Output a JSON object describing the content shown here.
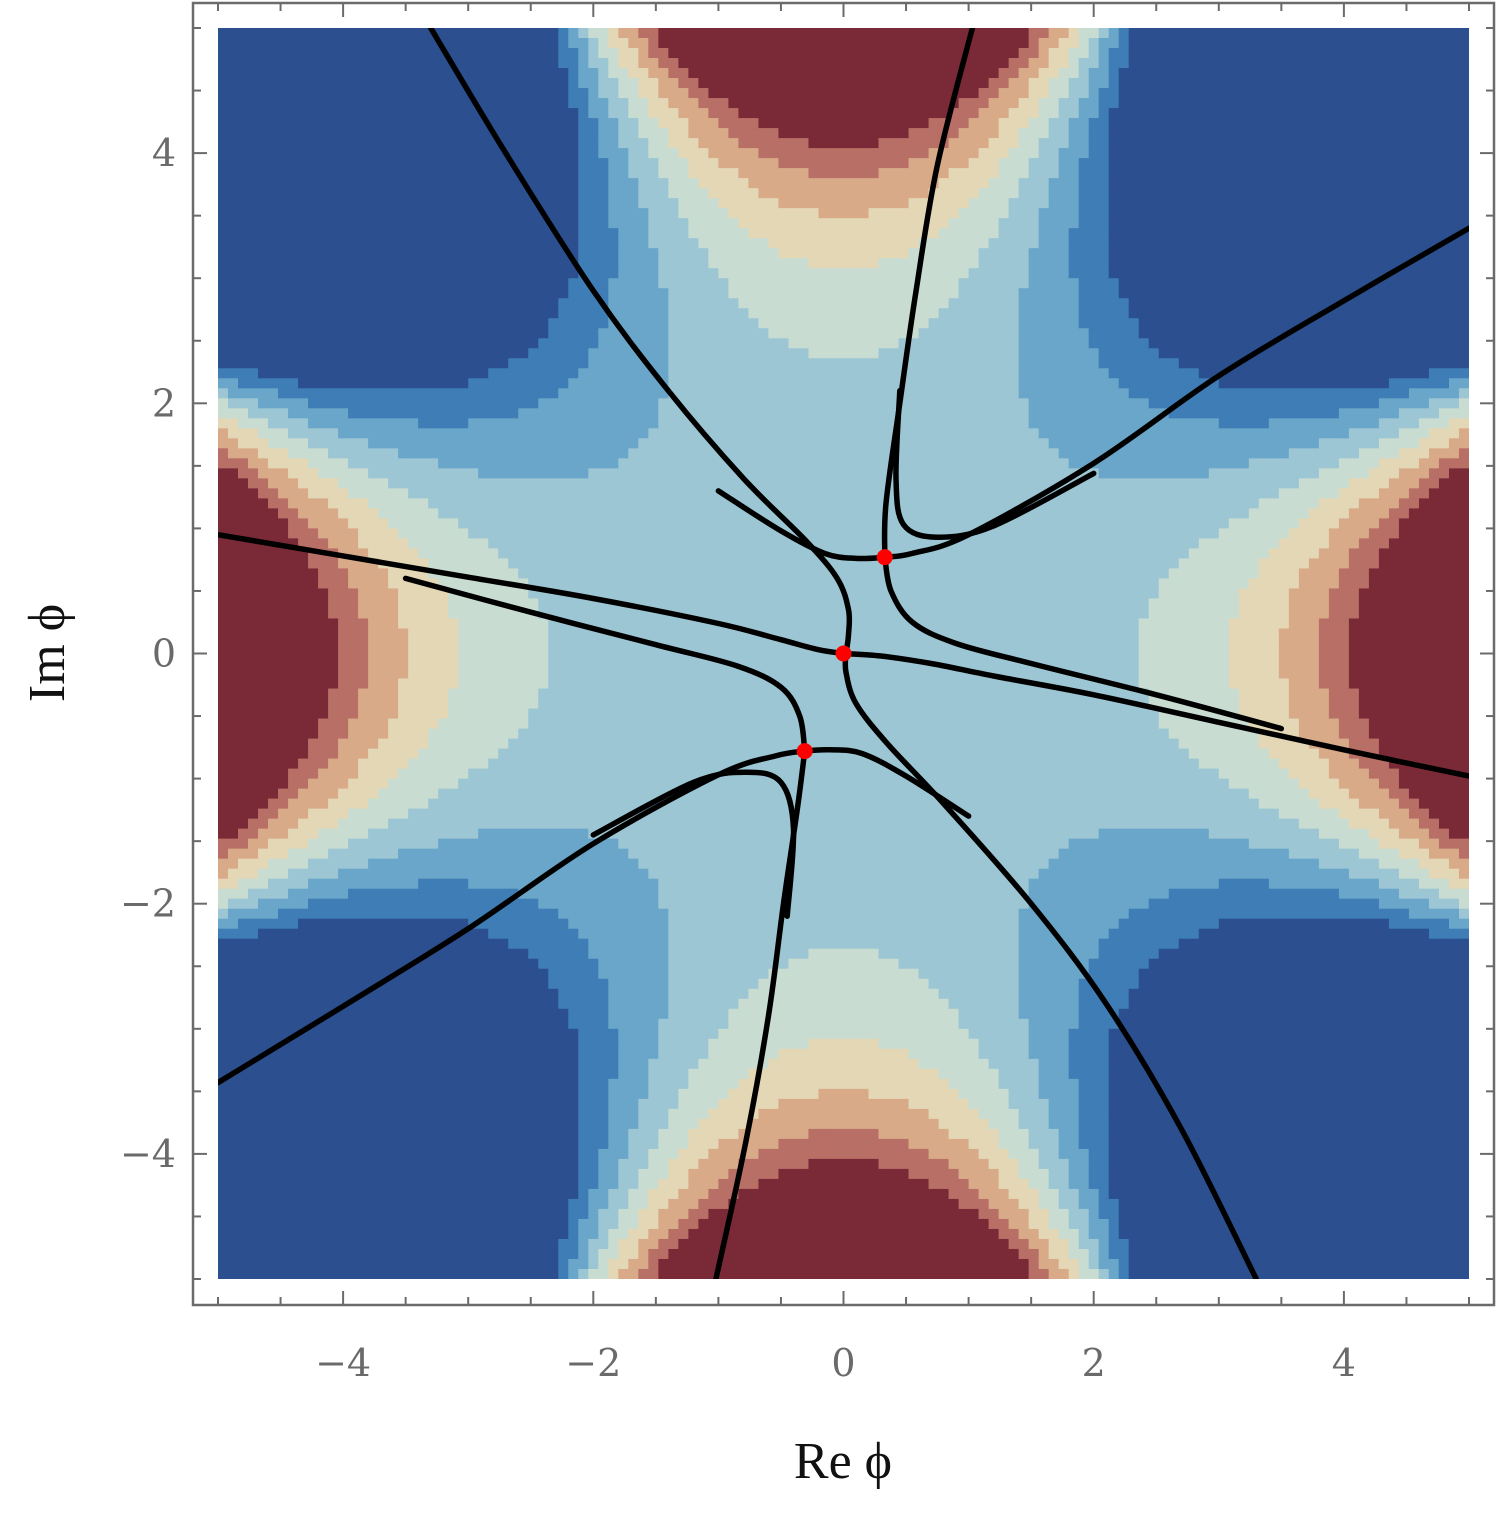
{
  "chart_data": {
    "type": "contour",
    "xlabel": "Re ϕ",
    "ylabel": "Im ϕ",
    "xlim": [
      -5,
      5
    ],
    "ylim": [
      -5,
      5
    ],
    "x_ticks": [
      -4,
      -2,
      0,
      2,
      4
    ],
    "x_tick_labels": [
      "−4",
      "−2",
      "0",
      "2",
      "4"
    ],
    "y_ticks": [
      -4,
      -2,
      0,
      2,
      4
    ],
    "y_tick_labels": [
      "−4",
      "−2",
      "0",
      "2",
      "4"
    ],
    "grid": false,
    "legend": "none",
    "colormap": [
      "#2c4f8f",
      "#3e7db5",
      "#6aa6c9",
      "#9cc6d3",
      "#c9dcd2",
      "#e3d7b5",
      "#d8aa88",
      "#b86f66",
      "#7a2a37"
    ],
    "saddle_points": [
      {
        "x": 0.0,
        "y": 0.0
      },
      {
        "x": 0.33,
        "y": 0.77
      },
      {
        "x": -0.31,
        "y": -0.78
      }
    ],
    "saddle_color": "#ff0000",
    "flow_line_color": "#000000",
    "flow_lines": [
      {
        "points": [
          [
            -5.0,
            0.95
          ],
          [
            -4.0,
            0.78
          ],
          [
            -3.0,
            0.61
          ],
          [
            -2.0,
            0.44
          ],
          [
            -1.0,
            0.24
          ],
          [
            -0.5,
            0.11
          ],
          [
            -0.2,
            0.03
          ],
          [
            0.0,
            0.0
          ]
        ]
      },
      {
        "points": [
          [
            0.0,
            0.0
          ],
          [
            0.3,
            -0.02
          ],
          [
            0.7,
            -0.08
          ],
          [
            1.2,
            -0.18
          ],
          [
            2.0,
            -0.33
          ],
          [
            3.0,
            -0.55
          ],
          [
            4.0,
            -0.77
          ],
          [
            5.0,
            -0.98
          ]
        ]
      },
      {
        "points": [
          [
            0.02,
            0.0
          ],
          [
            0.04,
            0.15
          ],
          [
            0.04,
            0.35
          ],
          [
            -0.05,
            0.6
          ],
          [
            -0.3,
            0.9
          ],
          [
            -0.8,
            1.4
          ],
          [
            -1.4,
            2.1
          ],
          [
            -2.0,
            2.9
          ],
          [
            -2.7,
            4.0
          ],
          [
            -3.3,
            5.0
          ]
        ]
      },
      {
        "points": [
          [
            0.02,
            0.0
          ],
          [
            0.02,
            -0.15
          ],
          [
            0.1,
            -0.4
          ],
          [
            0.35,
            -0.72
          ],
          [
            0.8,
            -1.2
          ],
          [
            1.5,
            -2.0
          ],
          [
            2.1,
            -2.8
          ],
          [
            2.7,
            -3.8
          ],
          [
            3.3,
            -5.0
          ]
        ]
      },
      {
        "points": [
          [
            -1.0,
            1.3
          ],
          [
            -0.5,
            0.98
          ],
          [
            -0.15,
            0.8
          ],
          [
            0.1,
            0.76
          ],
          [
            0.33,
            0.77
          ],
          [
            0.55,
            0.8
          ],
          [
            1.0,
            0.95
          ],
          [
            2.0,
            1.52
          ],
          [
            3.0,
            2.22
          ],
          [
            4.0,
            2.82
          ],
          [
            5.0,
            3.4
          ]
        ]
      },
      {
        "points": [
          [
            0.33,
            0.77
          ],
          [
            0.34,
            1.2
          ],
          [
            0.45,
            2.0
          ],
          [
            0.58,
            2.9
          ],
          [
            0.75,
            3.9
          ],
          [
            1.03,
            5.0
          ]
        ]
      },
      {
        "points": [
          [
            0.33,
            0.77
          ],
          [
            0.38,
            0.5
          ],
          [
            0.55,
            0.25
          ],
          [
            0.9,
            0.08
          ],
          [
            1.5,
            -0.08
          ],
          [
            2.5,
            -0.33
          ],
          [
            3.5,
            -0.6
          ]
        ]
      },
      {
        "points": [
          [
            0.45,
            2.1
          ],
          [
            0.42,
            1.4
          ],
          [
            0.48,
            1.03
          ],
          [
            0.75,
            0.93
          ],
          [
            1.2,
            1.02
          ],
          [
            2.0,
            1.44
          ]
        ]
      },
      {
        "points": [
          [
            1.0,
            -1.3
          ],
          [
            0.5,
            -0.98
          ],
          [
            0.15,
            -0.8
          ],
          [
            -0.1,
            -0.77
          ],
          [
            -0.31,
            -0.78
          ],
          [
            -0.55,
            -0.82
          ],
          [
            -1.0,
            -0.97
          ],
          [
            -2.0,
            -1.52
          ],
          [
            -3.0,
            -2.2
          ],
          [
            -4.0,
            -2.82
          ],
          [
            -5.0,
            -3.43
          ]
        ]
      },
      {
        "points": [
          [
            -0.31,
            -0.78
          ],
          [
            -0.37,
            -1.25
          ],
          [
            -0.48,
            -2.0
          ],
          [
            -0.6,
            -2.9
          ],
          [
            -0.78,
            -3.9
          ],
          [
            -1.02,
            -5.0
          ]
        ]
      },
      {
        "points": [
          [
            -0.31,
            -0.78
          ],
          [
            -0.35,
            -0.5
          ],
          [
            -0.5,
            -0.27
          ],
          [
            -0.85,
            -0.1
          ],
          [
            -1.5,
            0.07
          ],
          [
            -2.5,
            0.33
          ],
          [
            -3.5,
            0.6
          ]
        ]
      },
      {
        "points": [
          [
            -0.45,
            -2.1
          ],
          [
            -0.4,
            -1.4
          ],
          [
            -0.5,
            -1.03
          ],
          [
            -0.77,
            -0.95
          ],
          [
            -1.2,
            -1.03
          ],
          [
            -2.0,
            -1.45
          ]
        ]
      }
    ]
  }
}
